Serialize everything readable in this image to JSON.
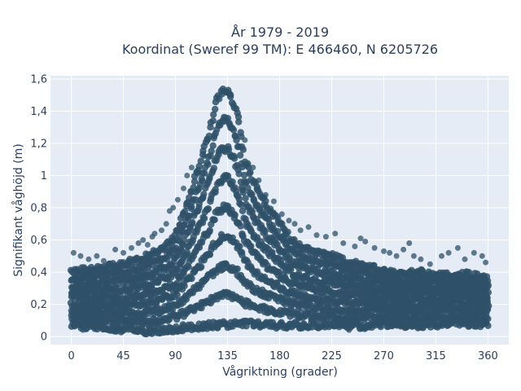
{
  "chart_data": {
    "type": "scatter",
    "title_line1": "År 1979 - 2019",
    "title_line2": "Koordinat (Sweref 99 TM): E 466460, N 6205726",
    "xlabel": "Vågriktning (grader)",
    "ylabel": "Signifikant våghöjd (m)",
    "xlim": [
      -18,
      378
    ],
    "ylim": [
      -0.05,
      1.62
    ],
    "x_ticks": [
      0,
      45,
      90,
      135,
      180,
      225,
      270,
      315,
      360
    ],
    "x_tick_labels": [
      "0",
      "45",
      "90",
      "135",
      "180",
      "225",
      "270",
      "315",
      "360"
    ],
    "y_ticks": [
      0,
      0.2,
      0.4,
      0.6,
      0.8,
      1.0,
      1.2,
      1.4,
      1.6
    ],
    "y_tick_labels": [
      "0",
      "0,2",
      "0,4",
      "0,6",
      "0,8",
      "1",
      "1,2",
      "1,4",
      "1,6"
    ],
    "grid": true,
    "background_color": "#e5ecf6",
    "marker_color": "#2f5168",
    "band_lower": [
      [
        0,
        0.07
      ],
      [
        30,
        0.06
      ],
      [
        60,
        0.03
      ],
      [
        90,
        0.05
      ],
      [
        120,
        0.07
      ],
      [
        150,
        0.08
      ],
      [
        180,
        0.07
      ],
      [
        210,
        0.07
      ],
      [
        240,
        0.06
      ],
      [
        270,
        0.08
      ],
      [
        300,
        0.07
      ],
      [
        330,
        0.08
      ],
      [
        360,
        0.08
      ]
    ],
    "band_upper": [
      [
        0,
        0.4
      ],
      [
        20,
        0.42
      ],
      [
        40,
        0.44
      ],
      [
        60,
        0.48
      ],
      [
        80,
        0.55
      ],
      [
        90,
        0.62
      ],
      [
        100,
        0.82
      ],
      [
        110,
        1.05
      ],
      [
        120,
        1.28
      ],
      [
        125,
        1.45
      ],
      [
        130,
        1.52
      ],
      [
        135,
        1.53
      ],
      [
        140,
        1.45
      ],
      [
        145,
        1.32
      ],
      [
        150,
        1.1
      ],
      [
        160,
        0.92
      ],
      [
        170,
        0.8
      ],
      [
        180,
        0.7
      ],
      [
        190,
        0.6
      ],
      [
        200,
        0.55
      ],
      [
        210,
        0.52
      ],
      [
        225,
        0.5
      ],
      [
        240,
        0.46
      ],
      [
        255,
        0.44
      ],
      [
        270,
        0.4
      ],
      [
        285,
        0.38
      ],
      [
        300,
        0.4
      ],
      [
        315,
        0.38
      ],
      [
        330,
        0.39
      ],
      [
        345,
        0.38
      ],
      [
        360,
        0.36
      ]
    ],
    "outliers": [
      [
        2,
        0.52
      ],
      [
        8,
        0.5
      ],
      [
        15,
        0.48
      ],
      [
        22,
        0.5
      ],
      [
        28,
        0.47
      ],
      [
        38,
        0.54
      ],
      [
        45,
        0.52
      ],
      [
        52,
        0.55
      ],
      [
        58,
        0.58
      ],
      [
        62,
        0.6
      ],
      [
        66,
        0.57
      ],
      [
        70,
        0.62
      ],
      [
        72,
        0.64
      ],
      [
        78,
        0.66
      ],
      [
        82,
        0.7
      ],
      [
        85,
        0.78
      ],
      [
        88,
        0.8
      ],
      [
        92,
        0.85
      ],
      [
        97,
        0.92
      ],
      [
        100,
        1.0
      ],
      [
        104,
        1.05
      ],
      [
        108,
        1.02
      ],
      [
        115,
        1.12
      ],
      [
        150,
        1.22
      ],
      [
        157,
        1.05
      ],
      [
        162,
        0.97
      ],
      [
        168,
        0.88
      ],
      [
        175,
        0.84
      ],
      [
        182,
        0.76
      ],
      [
        188,
        0.72
      ],
      [
        193,
        0.7
      ],
      [
        198,
        0.66
      ],
      [
        205,
        0.68
      ],
      [
        212,
        0.63
      ],
      [
        220,
        0.62
      ],
      [
        228,
        0.64
      ],
      [
        235,
        0.58
      ],
      [
        245,
        0.56
      ],
      [
        250,
        0.61
      ],
      [
        254,
        0.59
      ],
      [
        262,
        0.55
      ],
      [
        270,
        0.53
      ],
      [
        275,
        0.52
      ],
      [
        281,
        0.5
      ],
      [
        287,
        0.54
      ],
      [
        292,
        0.58
      ],
      [
        296,
        0.5
      ],
      [
        302,
        0.48
      ],
      [
        310,
        0.45
      ],
      [
        320,
        0.5
      ],
      [
        326,
        0.52
      ],
      [
        334,
        0.55
      ],
      [
        340,
        0.48
      ],
      [
        348,
        0.52
      ],
      [
        355,
        0.5
      ],
      [
        358,
        0.46
      ],
      [
        10,
        0.04
      ],
      [
        42,
        0.05
      ],
      [
        58,
        0.03
      ],
      [
        64,
        0.02
      ],
      [
        110,
        0.04
      ],
      [
        200,
        0.05
      ],
      [
        240,
        0.04
      ],
      [
        300,
        0.06
      ]
    ]
  }
}
